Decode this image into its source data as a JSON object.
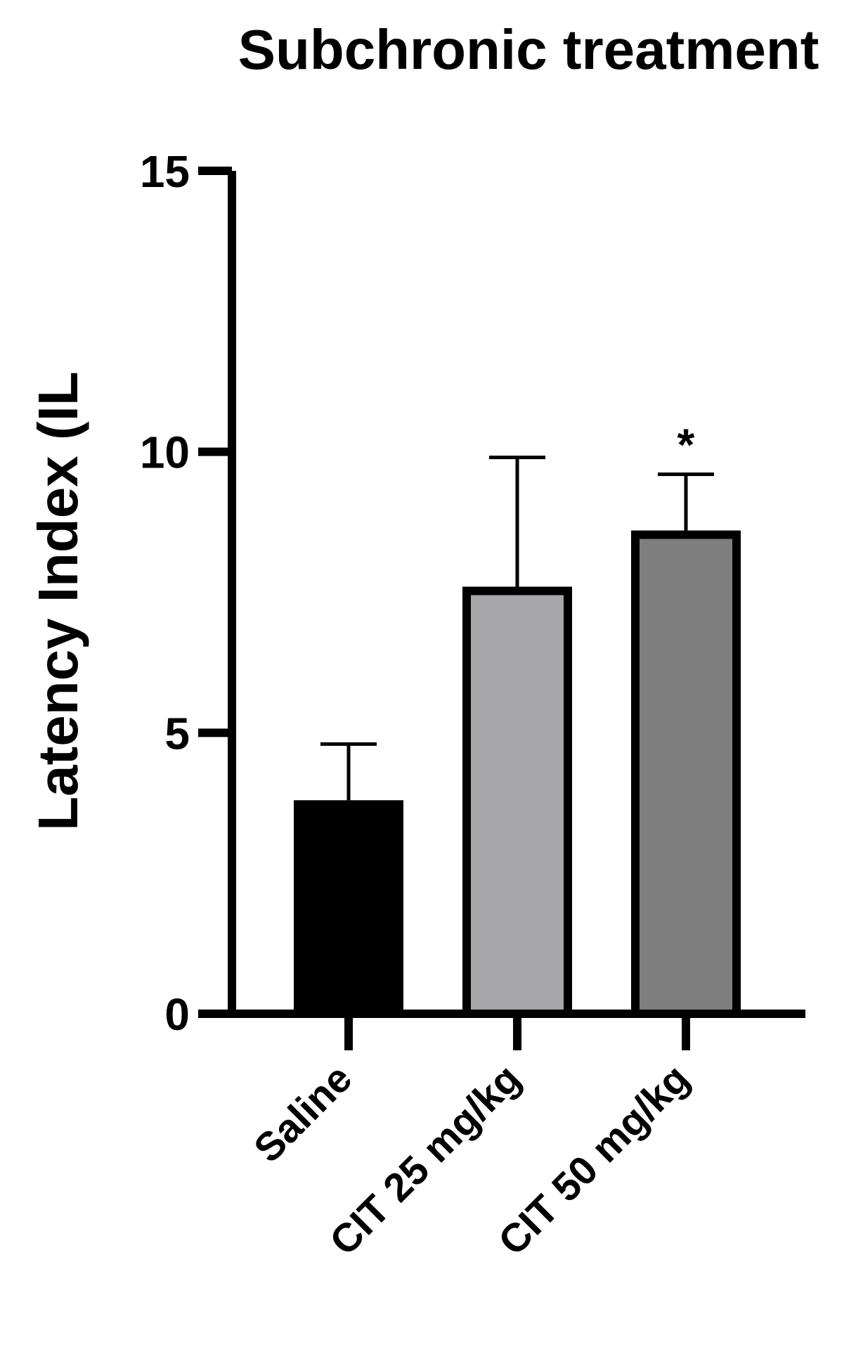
{
  "chart_data": {
    "type": "bar",
    "title": "Subchronic treatment",
    "xlabel": "",
    "ylabel": "Latency Index (IL",
    "ylim": [
      0,
      15
    ],
    "yticks": [
      0,
      5,
      10,
      15
    ],
    "grid": false,
    "categories": [
      "Saline",
      "CIT 25 mg/kg",
      "CIT 50 mg/kg"
    ],
    "series": [
      {
        "values": [
          3.8,
          7.6,
          8.6
        ],
        "errors": [
          1.0,
          2.3,
          1.0
        ],
        "colors": [
          "#000000",
          "#a6a6a9",
          "#7f7f7f"
        ]
      }
    ],
    "annotations": [
      "",
      "",
      "*"
    ]
  }
}
